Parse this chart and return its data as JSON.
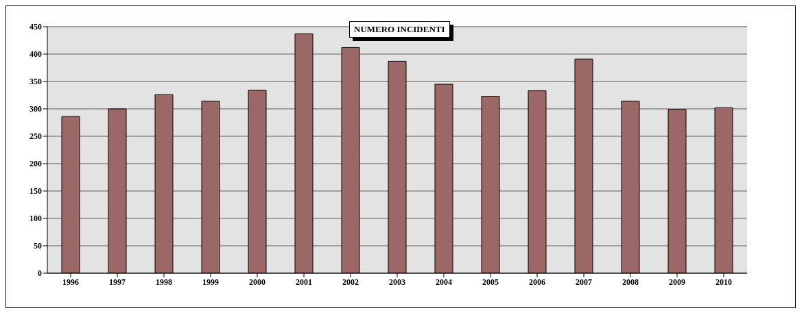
{
  "chart_data": {
    "type": "bar",
    "title": "NUMERO INCIDENTI",
    "categories": [
      "1996",
      "1997",
      "1998",
      "1999",
      "2000",
      "2001",
      "2002",
      "2003",
      "2004",
      "2005",
      "2006",
      "2007",
      "2008",
      "2009",
      "2010"
    ],
    "values": [
      286,
      300,
      326,
      314,
      334,
      437,
      412,
      387,
      345,
      323,
      333,
      391,
      314,
      299,
      302
    ],
    "color": "#9b6867",
    "ylim": [
      0,
      450
    ],
    "yticks": [
      0,
      50,
      100,
      150,
      200,
      250,
      300,
      350,
      400,
      450
    ],
    "grid": "y"
  }
}
